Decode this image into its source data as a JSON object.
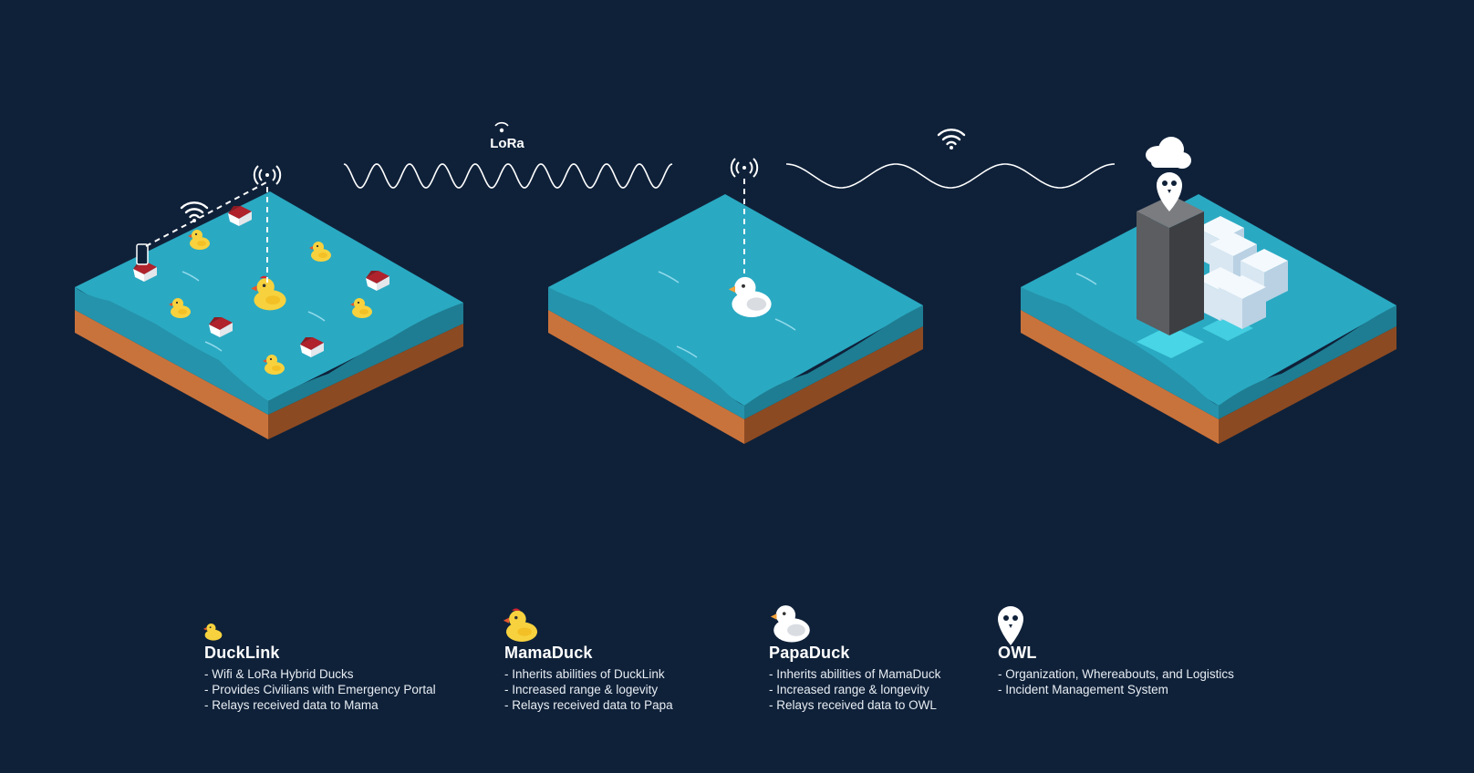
{
  "diagram": {
    "lora_label": "LoRa",
    "icons": {
      "duck": "rubber-duck-icon",
      "house": "house-icon",
      "phone": "phone-icon",
      "wifi": "wifi-icon",
      "antenna": "antenna-icon",
      "cloud": "cloud-icon",
      "owl_pin": "owl-pin-icon",
      "server": "server-tower-icon"
    },
    "colors": {
      "background": "#0f2139",
      "water_top": "#2aa9c2",
      "water_front": "#2593ab",
      "water_side": "#1e7d92",
      "soil_front": "#c9733c",
      "soil_side": "#8c4a22",
      "yellow_duck": "#f7d23e",
      "papa_duck": "#ffffff",
      "house_roof": "#b0222c",
      "tower": "#4d4f52"
    }
  },
  "legend": [
    {
      "title": "DuckLink",
      "lines": [
        "- Wifi & LoRa Hybrid Ducks",
        "- Provides Civilians with Emergency Portal",
        "- Relays received data to Mama"
      ]
    },
    {
      "title": "MamaDuck",
      "lines": [
        "- Inherits abilities of DuckLink",
        "- Increased range & logevity",
        "- Relays received data to Papa"
      ]
    },
    {
      "title": "PapaDuck",
      "lines": [
        "- Inherits abilities of MamaDuck",
        "- Increased range & longevity",
        "- Relays received data to OWL"
      ]
    },
    {
      "title": "OWL",
      "lines": [
        "- Organization, Whereabouts, and Logistics",
        "- Incident Management System"
      ]
    }
  ]
}
